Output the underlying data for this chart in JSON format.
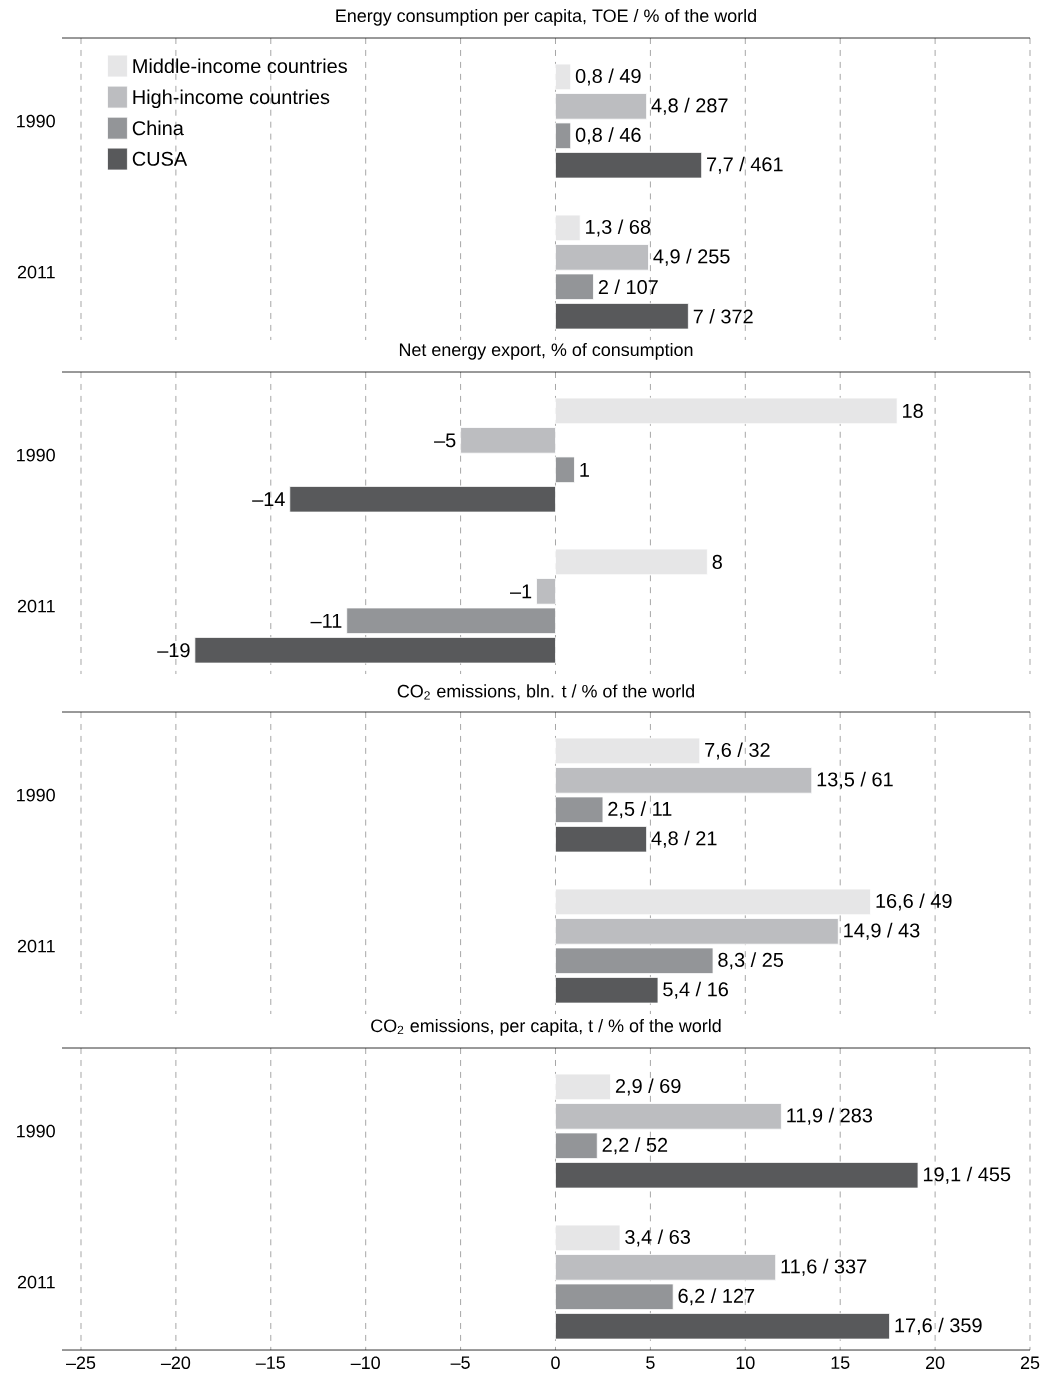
{
  "chart_data": [
    {
      "type": "bar",
      "orientation": "horizontal",
      "title": "Energy consumption per capita, TOE / % of the world",
      "categories": [
        "1990",
        "2011"
      ],
      "xlim": [
        -26,
        25
      ],
      "xticks": [
        -25,
        -20,
        -15,
        -10,
        -5,
        0,
        5,
        10,
        15,
        20,
        25
      ],
      "grid": "x",
      "legend": "top left",
      "tick_labels": "y",
      "series": [
        {
          "name": "Middle-income countries",
          "color": "#e6e6e7",
          "values": [
            0.8,
            1.3
          ],
          "value_labels": [
            "0,8 / 49",
            "1,3 / 68"
          ]
        },
        {
          "name": "High-income countries",
          "color": "#bcbdc0",
          "values": [
            4.8,
            4.9
          ],
          "value_labels": [
            "4,8 / 287",
            "4,9 / 255"
          ]
        },
        {
          "name": "China",
          "color": "#939598",
          "values": [
            0.8,
            2
          ],
          "value_labels": [
            "0,8 / 46",
            "2 / 107"
          ]
        },
        {
          "name": "CUSA",
          "color": "#58595b",
          "values": [
            7.7,
            7
          ],
          "value_labels": [
            "7,7 / 461",
            "7 / 372"
          ]
        }
      ]
    },
    {
      "type": "bar",
      "orientation": "horizontal",
      "title": "Net energy export, % of consumption",
      "categories": [
        "1990",
        "2011"
      ],
      "xlim": [
        -26,
        25
      ],
      "xticks": [
        -25,
        -20,
        -15,
        -10,
        -5,
        0,
        5,
        10,
        15,
        20,
        25
      ],
      "grid": "x",
      "tick_labels": "y",
      "series": [
        {
          "color": "#e6e6e7",
          "values": [
            18,
            8
          ],
          "value_labels": [
            "18",
            "8"
          ]
        },
        {
          "color": "#bcbdc0",
          "values": [
            -5,
            -1
          ],
          "value_labels": [
            "–5",
            "–1"
          ]
        },
        {
          "color": "#939598",
          "values": [
            1,
            -11
          ],
          "value_labels": [
            "1",
            "–11"
          ]
        },
        {
          "color": "#58595b",
          "values": [
            -14,
            -19
          ],
          "value_labels": [
            "–14",
            "–19"
          ]
        }
      ]
    },
    {
      "type": "bar",
      "orientation": "horizontal",
      "title": "CO$_{2}$ emissions, bln. t / % of the world",
      "categories": [
        "1990",
        "2011"
      ],
      "xlim": [
        -26,
        25
      ],
      "xticks": [
        -25,
        -20,
        -15,
        -10,
        -5,
        0,
        5,
        10,
        15,
        20,
        25
      ],
      "grid": "x",
      "tick_labels": "y",
      "series": [
        {
          "color": "#e6e6e7",
          "values": [
            7.6,
            16.6
          ],
          "value_labels": [
            "7,6 / 32",
            "16,6 / 49"
          ]
        },
        {
          "color": "#bcbdc0",
          "values": [
            13.5,
            14.9
          ],
          "value_labels": [
            "13,5 / 61",
            "14,9 / 43"
          ]
        },
        {
          "color": "#939598",
          "values": [
            2.5,
            8.3
          ],
          "value_labels": [
            "2,5 / 11",
            "8,3 / 25"
          ]
        },
        {
          "color": "#58595b",
          "values": [
            4.8,
            5.4
          ],
          "value_labels": [
            "4,8 / 21",
            "5,4 / 16"
          ]
        }
      ]
    },
    {
      "type": "bar",
      "orientation": "horizontal",
      "title": "CO$_{2}$ emissions, per capita, t / % of the world",
      "categories": [
        "1990",
        "2011"
      ],
      "xlim": [
        -26,
        25
      ],
      "xticks": [
        {
          "value": -25,
          "label": "–25"
        },
        {
          "value": -20,
          "label": "–20"
        },
        {
          "value": -15,
          "label": "–15"
        },
        {
          "value": -10,
          "label": "–10"
        },
        {
          "value": -5,
          "label": "–5"
        },
        0,
        5,
        10,
        15,
        20,
        25
      ],
      "grid": "x",
      "series": [
        {
          "color": "#e6e6e7",
          "values": [
            2.9,
            3.4
          ],
          "value_labels": [
            "2,9 / 69",
            "3,4 / 63"
          ]
        },
        {
          "color": "#bcbdc0",
          "values": [
            11.9,
            11.6
          ],
          "value_labels": [
            "11,9 / 283",
            "11,6 / 337"
          ]
        },
        {
          "color": "#939598",
          "values": [
            2.2,
            6.2
          ],
          "value_labels": [
            "2,2 / 52",
            "6,2 / 127"
          ]
        },
        {
          "color": "#58595b",
          "values": [
            19.1,
            17.6
          ],
          "value_labels": [
            "19,1 / 455",
            "17,6 / 359"
          ]
        }
      ]
    }
  ]
}
